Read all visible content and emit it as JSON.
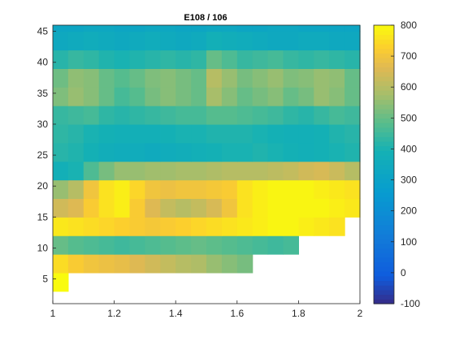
{
  "chart_data": {
    "type": "heatmap",
    "title": "E108 / 106",
    "xlabel": "",
    "ylabel": "",
    "xlim": [
      1,
      2
    ],
    "ylim": [
      1,
      46
    ],
    "x_ticks": [
      1,
      1.2,
      1.4,
      1.6,
      1.8,
      2
    ],
    "x_tick_labels": [
      "1",
      "1.2",
      "1.4",
      "1.6",
      "1.8",
      "2"
    ],
    "y_ticks": [
      5,
      10,
      15,
      20,
      25,
      30,
      35,
      40,
      45
    ],
    "y_tick_labels": [
      "5",
      "10",
      "15",
      "20",
      "25",
      "30",
      "35",
      "40",
      "45"
    ],
    "colorbar": {
      "range": [
        -100,
        800
      ],
      "ticks": [
        -100,
        0,
        100,
        200,
        300,
        400,
        500,
        600,
        700,
        800
      ],
      "tick_labels": [
        "-100",
        "0",
        "100",
        "200",
        "300",
        "400",
        "500",
        "600",
        "700",
        "800"
      ],
      "colormap": "parula"
    },
    "x": [
      1.0,
      1.05,
      1.1,
      1.15,
      1.2,
      1.25,
      1.3,
      1.35,
      1.4,
      1.45,
      1.5,
      1.55,
      1.6,
      1.65,
      1.7,
      1.75,
      1.8,
      1.85,
      1.9,
      1.95
    ],
    "y": [
      3,
      6,
      9,
      12,
      15,
      18,
      21,
      24,
      27,
      30,
      33,
      36,
      39,
      42,
      45
    ],
    "values": [
      [
        800,
        null,
        null,
        null,
        null,
        null,
        null,
        null,
        null,
        null,
        null,
        null,
        null,
        null,
        null,
        null,
        null,
        null,
        null,
        null
      ],
      [
        750,
        720,
        700,
        690,
        680,
        660,
        640,
        620,
        600,
        590,
        560,
        540,
        520,
        null,
        null,
        null,
        null,
        null,
        null,
        null
      ],
      [
        500,
        480,
        470,
        460,
        450,
        460,
        470,
        480,
        490,
        500,
        490,
        480,
        470,
        460,
        450,
        460,
        null,
        null,
        null,
        null
      ],
      [
        770,
        760,
        750,
        740,
        730,
        720,
        710,
        720,
        730,
        740,
        750,
        760,
        770,
        780,
        790,
        790,
        780,
        770,
        760,
        null
      ],
      [
        640,
        660,
        720,
        760,
        780,
        720,
        660,
        620,
        600,
        620,
        650,
        700,
        760,
        780,
        790,
        790,
        790,
        790,
        780,
        770
      ],
      [
        560,
        600,
        700,
        760,
        780,
        740,
        700,
        690,
        700,
        700,
        710,
        720,
        760,
        780,
        790,
        790,
        790,
        780,
        770,
        760
      ],
      [
        380,
        400,
        470,
        520,
        560,
        560,
        570,
        570,
        580,
        580,
        590,
        600,
        600,
        600,
        610,
        620,
        640,
        650,
        630,
        600
      ],
      [
        420,
        410,
        390,
        370,
        360,
        360,
        350,
        360,
        370,
        380,
        390,
        400,
        400,
        410,
        400,
        390,
        380,
        390,
        400,
        410
      ],
      [
        430,
        420,
        400,
        390,
        380,
        380,
        380,
        390,
        400,
        400,
        410,
        410,
        410,
        400,
        390,
        380,
        380,
        390,
        410,
        420
      ],
      [
        440,
        450,
        460,
        430,
        420,
        430,
        440,
        450,
        460,
        460,
        480,
        480,
        470,
        460,
        450,
        430,
        420,
        440,
        460,
        450
      ],
      [
        530,
        560,
        540,
        500,
        460,
        480,
        520,
        540,
        520,
        500,
        580,
        540,
        500,
        520,
        540,
        500,
        520,
        560,
        540,
        500
      ],
      [
        510,
        550,
        540,
        500,
        480,
        500,
        530,
        540,
        520,
        500,
        600,
        560,
        520,
        540,
        560,
        530,
        540,
        560,
        550,
        500
      ],
      [
        420,
        440,
        430,
        410,
        400,
        410,
        420,
        430,
        420,
        430,
        500,
        470,
        440,
        450,
        460,
        440,
        430,
        440,
        430,
        420
      ],
      [
        340,
        350,
        360,
        350,
        340,
        350,
        360,
        350,
        340,
        350,
        380,
        370,
        360,
        350,
        340,
        340,
        350,
        350,
        340,
        340
      ],
      [
        320,
        320,
        330,
        330,
        320,
        320,
        330,
        330,
        320,
        320,
        330,
        330,
        320,
        320,
        330,
        330,
        320,
        320,
        320,
        320
      ]
    ],
    "grid": false
  }
}
